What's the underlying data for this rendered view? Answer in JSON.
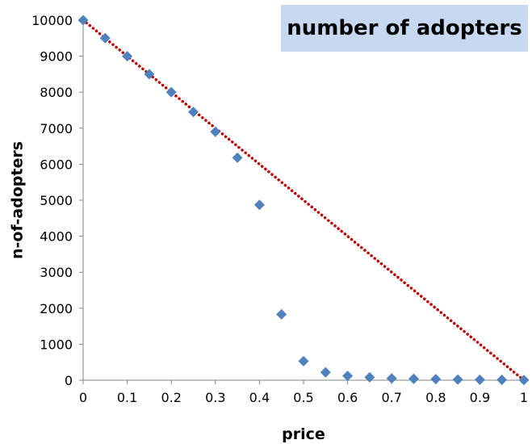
{
  "chart_data": {
    "type": "scatter",
    "title": "number of adopters",
    "xlabel": "price",
    "ylabel": "n-of-adopters",
    "xlim": [
      0,
      1
    ],
    "ylim": [
      0,
      10000
    ],
    "x_ticks": [
      "0",
      "0.1",
      "0.2",
      "0.3",
      "0.4",
      "0.5",
      "0.6",
      "0.7",
      "0.8",
      "0.9",
      "1"
    ],
    "y_ticks": [
      "0",
      "1000",
      "2000",
      "3000",
      "4000",
      "5000",
      "6000",
      "7000",
      "8000",
      "9000",
      "10000"
    ],
    "grid": false,
    "series": [
      {
        "marker": "diamond",
        "color": "#4f81bd",
        "points": [
          {
            "x": 0.0,
            "y": 10000
          },
          {
            "x": 0.05,
            "y": 9500
          },
          {
            "x": 0.1,
            "y": 9000
          },
          {
            "x": 0.15,
            "y": 8500
          },
          {
            "x": 0.2,
            "y": 8000
          },
          {
            "x": 0.25,
            "y": 7450
          },
          {
            "x": 0.3,
            "y": 6900
          },
          {
            "x": 0.35,
            "y": 6180
          },
          {
            "x": 0.4,
            "y": 4870
          },
          {
            "x": 0.45,
            "y": 1830
          },
          {
            "x": 0.5,
            "y": 530
          },
          {
            "x": 0.55,
            "y": 220
          },
          {
            "x": 0.6,
            "y": 120
          },
          {
            "x": 0.65,
            "y": 80
          },
          {
            "x": 0.7,
            "y": 50
          },
          {
            "x": 0.75,
            "y": 40
          },
          {
            "x": 0.8,
            "y": 30
          },
          {
            "x": 0.85,
            "y": 20
          },
          {
            "x": 0.9,
            "y": 15
          },
          {
            "x": 0.95,
            "y": 10
          },
          {
            "x": 1.0,
            "y": 5
          }
        ]
      },
      {
        "type": "line",
        "style": "dotted",
        "color": "#c00000",
        "points": [
          {
            "x": 0,
            "y": 10000
          },
          {
            "x": 1,
            "y": 0
          }
        ]
      }
    ]
  }
}
